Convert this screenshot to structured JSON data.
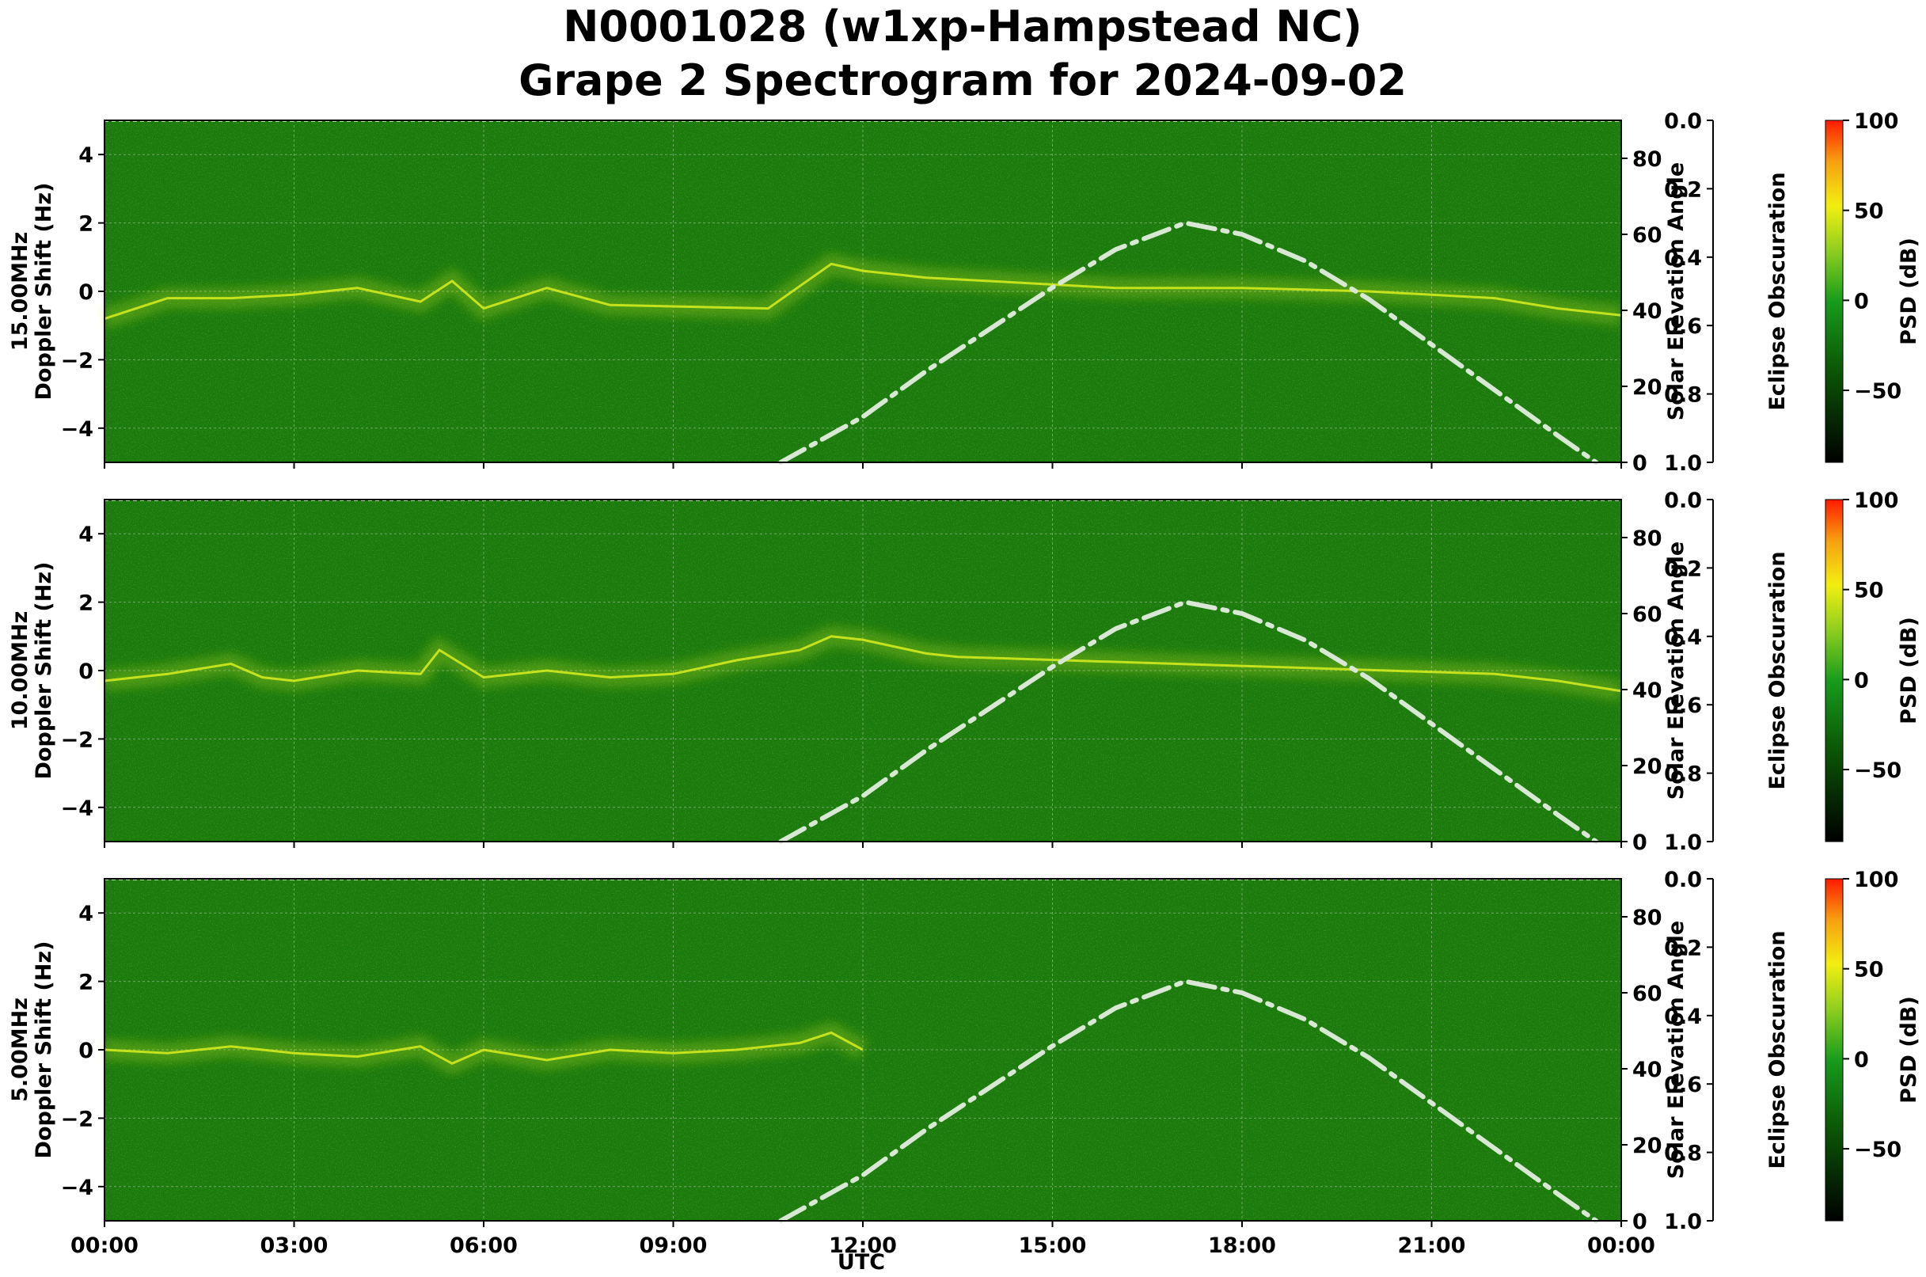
{
  "title_line1": "N0001028 (w1xp-Hampstead NC)",
  "title_line2": "Grape 2 Spectrogram for 2024-09-02",
  "xlabel": "UTC",
  "x_ticks": [
    "00:00",
    "03:00",
    "06:00",
    "09:00",
    "12:00",
    "15:00",
    "18:00",
    "21:00",
    "00:00"
  ],
  "left_ticks": [
    "4",
    "2",
    "0",
    "−2",
    "−4"
  ],
  "elev_ticks": [
    "80",
    "60",
    "40",
    "20",
    "0"
  ],
  "obsc_ticks": [
    "0.0",
    "0.2",
    "0.4",
    "0.6",
    "0.8",
    "1.0"
  ],
  "cbar_ticks": [
    "100",
    "50",
    "0",
    "−50"
  ],
  "right_label1": "Solar Elevation Angle",
  "right_label2": "Eclipse Obscuration",
  "cbar_label": "PSD (dB)",
  "colors": {
    "background": "#1a7a0c",
    "signal": "#d8ee20",
    "elevation_curve": "#d9e8d4"
  },
  "chart_data": [
    {
      "type": "heatmap",
      "panel": "15.00MHz",
      "ylabel_line1": "15.00MHz",
      "ylabel_line2": "Doppler Shift (Hz)",
      "x_range_hours": [
        0,
        24
      ],
      "ylim": [
        -5,
        5
      ],
      "right_axis": {
        "label": "Solar Elevation Angle",
        "ylim": [
          0,
          90
        ]
      },
      "obscuration_axis": {
        "label": "Eclipse Obscuration",
        "ylim": [
          0.0,
          1.0
        ]
      },
      "colorbar": {
        "label": "PSD (dB)",
        "range": [
          -90,
          100
        ]
      },
      "signal_trace": {
        "hours": [
          0,
          1,
          2,
          3,
          4,
          5,
          5.5,
          6,
          7,
          8,
          10.5,
          11.5,
          12,
          13,
          14,
          16,
          18,
          20,
          22,
          23,
          24
        ],
        "doppler_hz": [
          -0.8,
          -0.2,
          -0.2,
          -0.1,
          0.1,
          -0.3,
          0.3,
          -0.5,
          0.1,
          -0.4,
          -0.5,
          0.8,
          0.6,
          0.4,
          0.3,
          0.1,
          0.1,
          0.0,
          -0.2,
          -0.5,
          -0.7
        ]
      },
      "solar_elevation": {
        "hours": [
          10.7,
          12,
          13,
          14,
          15,
          16,
          17.1,
          18,
          19,
          20,
          21,
          22,
          23,
          23.6
        ],
        "degrees": [
          0,
          12,
          24,
          35,
          46,
          56,
          63,
          60,
          53,
          43,
          31,
          19,
          7,
          0
        ]
      }
    },
    {
      "type": "heatmap",
      "panel": "10.00MHz",
      "ylabel_line1": "10.00MHz",
      "ylabel_line2": "Doppler Shift (Hz)",
      "x_range_hours": [
        0,
        24
      ],
      "ylim": [
        -5,
        5
      ],
      "right_axis": {
        "label": "Solar Elevation Angle",
        "ylim": [
          0,
          90
        ]
      },
      "obscuration_axis": {
        "label": "Eclipse Obscuration",
        "ylim": [
          0.0,
          1.0
        ]
      },
      "colorbar": {
        "label": "PSD (dB)",
        "range": [
          -90,
          100
        ]
      },
      "signal_trace": {
        "hours": [
          0,
          1,
          2,
          2.5,
          3,
          4,
          5,
          5.3,
          6,
          7,
          8,
          9,
          10,
          11,
          11.5,
          12,
          13,
          13.5,
          22,
          23,
          24
        ],
        "doppler_hz": [
          -0.3,
          -0.1,
          0.2,
          -0.2,
          -0.3,
          0.0,
          -0.1,
          0.6,
          -0.2,
          0.0,
          -0.2,
          -0.1,
          0.3,
          0.6,
          1.0,
          0.9,
          0.5,
          0.4,
          -0.1,
          -0.3,
          -0.6
        ]
      },
      "solar_elevation": {
        "hours": [
          10.7,
          12,
          13,
          14,
          15,
          16,
          17.1,
          18,
          19,
          20,
          21,
          22,
          23,
          23.6
        ],
        "degrees": [
          0,
          12,
          24,
          35,
          46,
          56,
          63,
          60,
          53,
          43,
          31,
          19,
          7,
          0
        ]
      }
    },
    {
      "type": "heatmap",
      "panel": "5.00MHz",
      "ylabel_line1": "5.00MHz",
      "ylabel_line2": "Doppler Shift (Hz)",
      "x_range_hours": [
        0,
        24
      ],
      "ylim": [
        -5,
        5
      ],
      "right_axis": {
        "label": "Solar Elevation Angle",
        "ylim": [
          0,
          90
        ]
      },
      "obscuration_axis": {
        "label": "Eclipse Obscuration",
        "ylim": [
          0.0,
          1.0
        ]
      },
      "colorbar": {
        "label": "PSD (dB)",
        "range": [
          -90,
          100
        ]
      },
      "signal_trace": {
        "hours": [
          0,
          1,
          2,
          3,
          4,
          5,
          5.5,
          6,
          7,
          8,
          9,
          10,
          11,
          11.5,
          12
        ],
        "doppler_hz": [
          0.0,
          -0.1,
          0.1,
          -0.1,
          -0.2,
          0.1,
          -0.4,
          0.0,
          -0.3,
          0.0,
          -0.1,
          0.0,
          0.2,
          0.5,
          0.0
        ]
      },
      "solar_elevation": {
        "hours": [
          10.7,
          12,
          13,
          14,
          15,
          16,
          17.1,
          18,
          19,
          20,
          21,
          22,
          23,
          23.6
        ],
        "degrees": [
          0,
          12,
          24,
          35,
          46,
          56,
          63,
          60,
          53,
          43,
          31,
          19,
          7,
          0
        ]
      }
    }
  ]
}
